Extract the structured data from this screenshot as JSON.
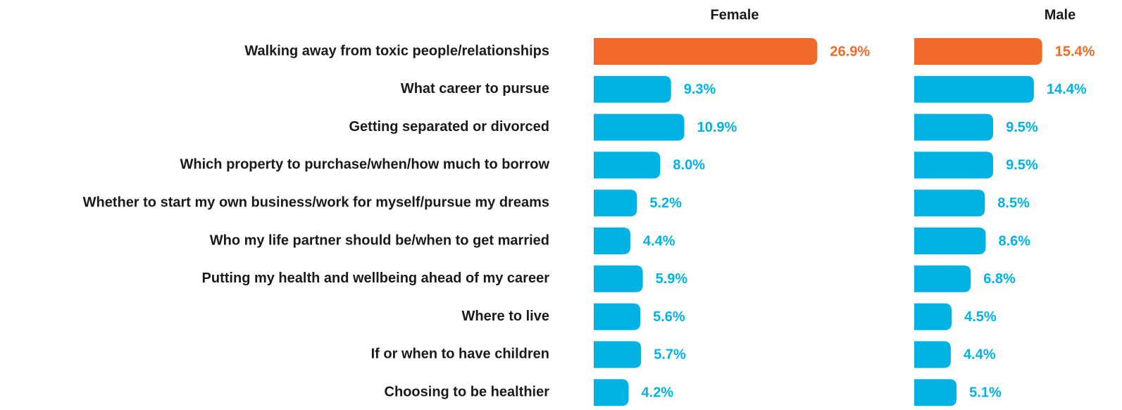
{
  "chart_data": {
    "type": "bar",
    "orientation": "horizontal",
    "categories": [
      "Walking away from toxic people/relationships",
      "What career to pursue",
      "Getting separated or divorced",
      "Which property to purchase/when/how much to borrow",
      "Whether to start my own business/work for myself/pursue my dreams",
      "Who my life partner should be/when to get married",
      "Putting my health and wellbeing ahead of my career",
      "Where to live",
      "If or when to have children",
      "Choosing to be healthier"
    ],
    "series": [
      {
        "name": "Female",
        "values": [
          26.9,
          9.3,
          10.9,
          8.0,
          5.2,
          4.4,
          5.9,
          5.6,
          5.7,
          4.2
        ],
        "value_labels": [
          "26.9%",
          "9.3%",
          "10.9%",
          "8.0%",
          "5.2%",
          "4.4%",
          "5.9%",
          "5.6%",
          "5.7%",
          "4.2%"
        ],
        "colors": [
          "#f26a2a",
          "#00b2e3",
          "#00b2e3",
          "#00b2e3",
          "#00b2e3",
          "#00b2e3",
          "#00b2e3",
          "#00b2e3",
          "#00b2e3",
          "#00b2e3"
        ]
      },
      {
        "name": "Male",
        "values": [
          15.4,
          14.4,
          9.5,
          9.5,
          8.5,
          8.6,
          6.8,
          4.5,
          4.4,
          5.1
        ],
        "value_labels": [
          "15.4%",
          "14.4%",
          "9.5%",
          "9.5%",
          "8.5%",
          "8.6%",
          "6.8%",
          "4.5%",
          "4.4%",
          "5.1%"
        ],
        "colors": [
          "#f26a2a",
          "#00b2e3",
          "#00b2e3",
          "#00b2e3",
          "#00b2e3",
          "#00b2e3",
          "#00b2e3",
          "#00b2e3",
          "#00b2e3",
          "#00b2e3"
        ]
      }
    ]
  }
}
